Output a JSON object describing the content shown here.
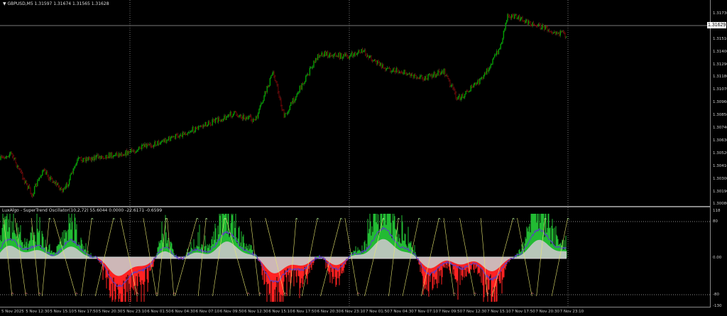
{
  "chart": {
    "symbol_line": "GBPUSD,M5 1.31597 1.31674 1.31565 1.31628",
    "current_price": "1.31629",
    "price_axis": [
      "1.31730",
      "1.31510",
      "1.31400",
      "1.31290",
      "1.31180",
      "1.31070",
      "1.30960",
      "1.30850",
      "1.30740",
      "1.30630",
      "1.30520",
      "1.30410",
      "1.30300",
      "1.30190",
      "1.30080"
    ],
    "bull_color": "#00c000",
    "bear_color": "#c00000"
  },
  "indicator": {
    "title": "LuxAlgo - SuperTrend Oscillator(10,2,72) 55.6044 0.0000 -22.6171 -0.6599",
    "axis": [
      "118",
      "80",
      "0.00",
      "-80",
      "-130"
    ],
    "bull_color": "#22bb33",
    "bear_color": "#ff2222",
    "signal_color": "#5a3cc8",
    "band_color": "#c8c8c8",
    "trend_color": "#e8e870"
  },
  "time_axis": [
    "5 Nov 2025",
    "5 Nov 12:30",
    "5 Nov 15:10",
    "5 Nov 17:50",
    "5 Nov 20:30",
    "5 Nov 23:10",
    "6 Nov 01:50",
    "6 Nov 04:30",
    "6 Nov 07:10",
    "6 Nov 09:50",
    "6 Nov 12:30",
    "6 Nov 15:10",
    "6 Nov 17:50",
    "6 Nov 20:30",
    "6 Nov 23:10",
    "7 Nov 01:50",
    "7 Nov 04:30",
    "7 Nov 07:10",
    "7 Nov 09:50",
    "7 Nov 12:30",
    "7 Nov 15:10",
    "7 Nov 17:50",
    "7 Nov 20:30",
    "7 Nov 23:10"
  ]
}
